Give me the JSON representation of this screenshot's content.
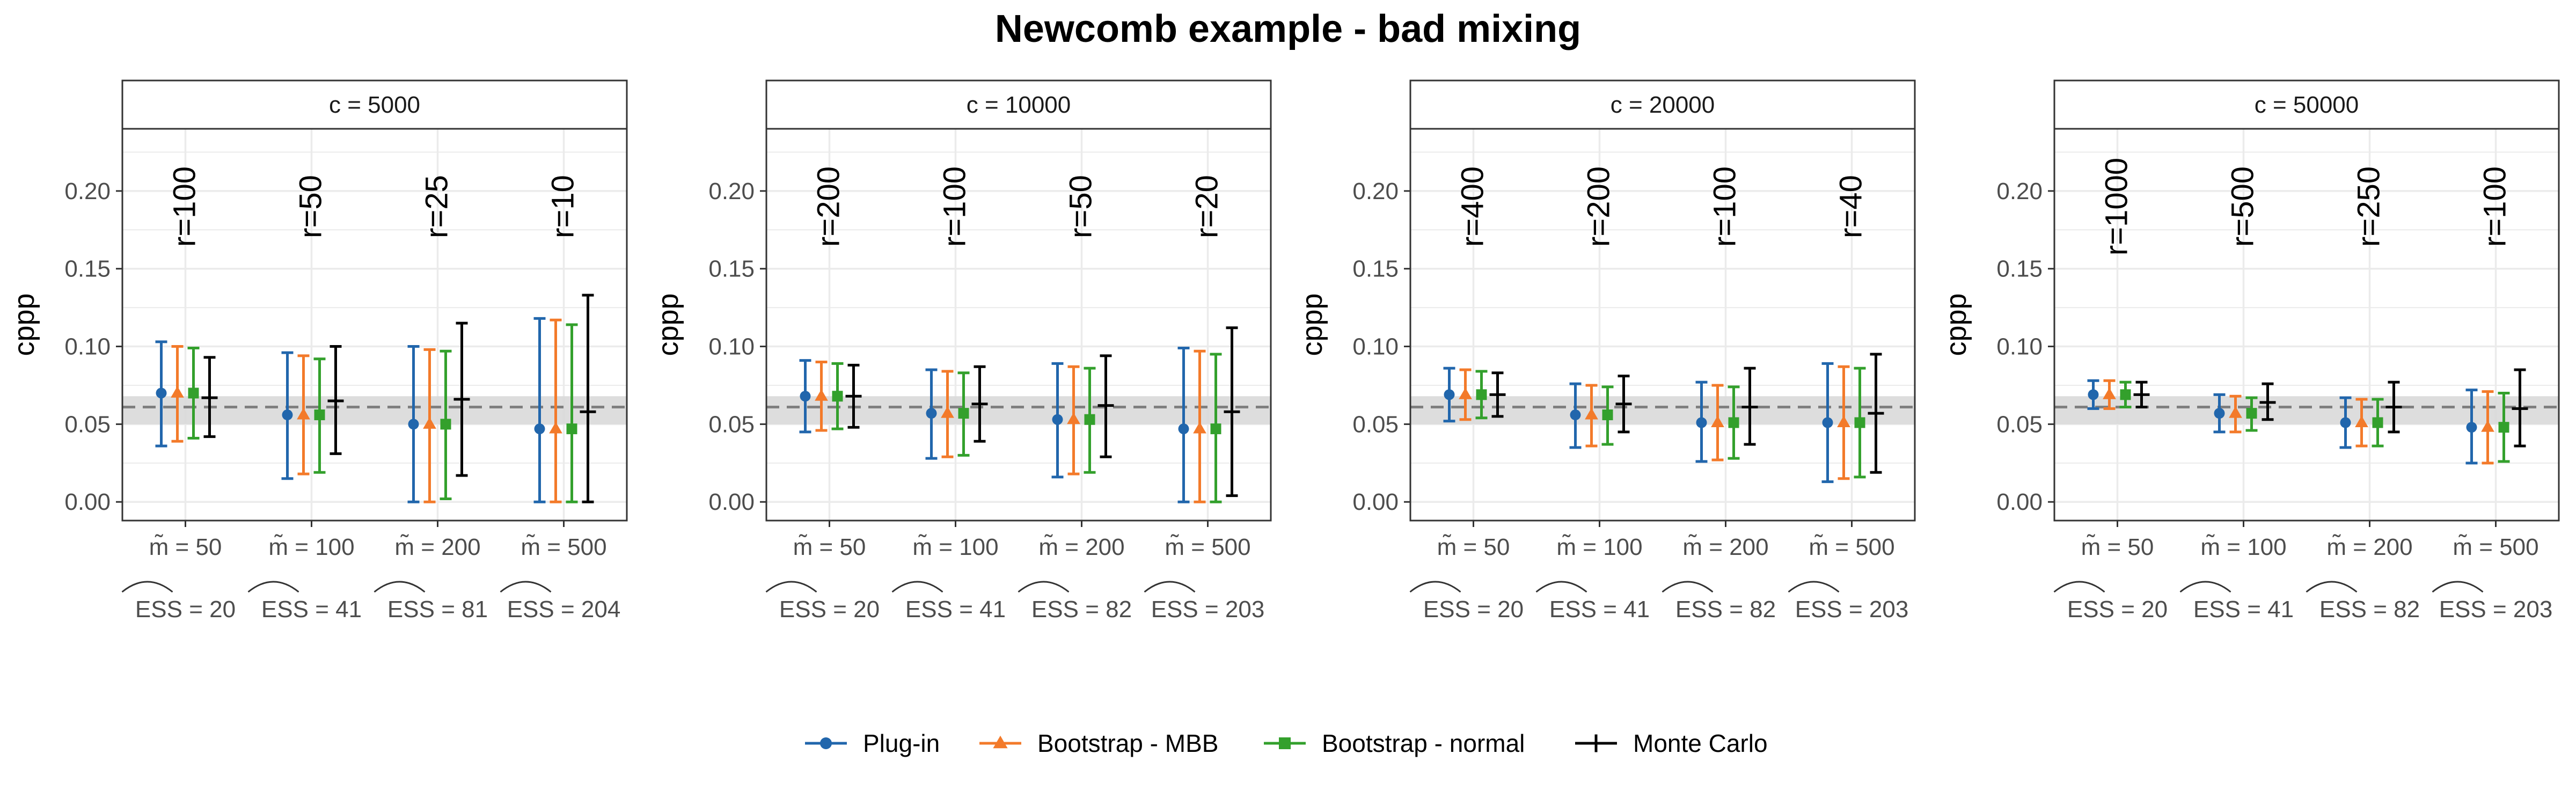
{
  "title": "Newcomb example - bad mixing",
  "colors": {
    "plugin": "#2166AC",
    "mbb": "#F37A2A",
    "normal": "#33A02C",
    "montecarlo": "#000000",
    "band": "#D9D9D9",
    "grid": "#EBEBEB",
    "dashed": "#7F7F7F"
  },
  "chart_data": {
    "type": "errorbar",
    "title": "Newcomb example - bad mixing",
    "ylabel": "cppp",
    "ylim": [
      -0.012,
      0.24
    ],
    "yticks": [
      0.0,
      0.05,
      0.1,
      0.15,
      0.2
    ],
    "ytick_labels": [
      "0.00",
      "0.05",
      "0.10",
      "0.15",
      "0.20"
    ],
    "reference_line": 0.061,
    "reference_band": [
      0.05,
      0.068
    ],
    "legend": {
      "position": "bottom",
      "entries": [
        {
          "key": "plugin",
          "label": "Plug-in",
          "marker": "circle"
        },
        {
          "key": "mbb",
          "label": "Bootstrap - MBB",
          "marker": "triangle"
        },
        {
          "key": "normal",
          "label": "Bootstrap - normal",
          "marker": "square"
        },
        {
          "key": "montecarlo",
          "label": "Monte Carlo",
          "marker": "plus"
        }
      ]
    },
    "panels": [
      {
        "strip": "c = 5000",
        "groups": [
          {
            "m_label": "m̃ = 50",
            "ess_label": "ESS = 20",
            "r_label": "r=100",
            "plugin": {
              "est": 0.07,
              "low": 0.036,
              "high": 0.103
            },
            "mbb": {
              "est": 0.07,
              "low": 0.039,
              "high": 0.1
            },
            "normal": {
              "est": 0.07,
              "low": 0.041,
              "high": 0.099
            },
            "montecarlo": {
              "est": 0.067,
              "low": 0.042,
              "high": 0.093
            }
          },
          {
            "m_label": "m̃ = 100",
            "ess_label": "ESS = 41",
            "r_label": "r=50",
            "plugin": {
              "est": 0.056,
              "low": 0.015,
              "high": 0.096
            },
            "mbb": {
              "est": 0.056,
              "low": 0.018,
              "high": 0.094
            },
            "normal": {
              "est": 0.056,
              "low": 0.019,
              "high": 0.092
            },
            "montecarlo": {
              "est": 0.065,
              "low": 0.031,
              "high": 0.1
            }
          },
          {
            "m_label": "m̃ = 200",
            "ess_label": "ESS = 81",
            "r_label": "r=25",
            "plugin": {
              "est": 0.05,
              "low": 0.0,
              "high": 0.1
            },
            "mbb": {
              "est": 0.05,
              "low": 0.0,
              "high": 0.098
            },
            "normal": {
              "est": 0.05,
              "low": 0.002,
              "high": 0.097
            },
            "montecarlo": {
              "est": 0.066,
              "low": 0.017,
              "high": 0.115
            }
          },
          {
            "m_label": "m̃ = 500",
            "ess_label": "ESS = 204",
            "r_label": "r=10",
            "plugin": {
              "est": 0.047,
              "low": 0.0,
              "high": 0.118
            },
            "mbb": {
              "est": 0.047,
              "low": 0.0,
              "high": 0.117
            },
            "normal": {
              "est": 0.047,
              "low": 0.0,
              "high": 0.114
            },
            "montecarlo": {
              "est": 0.058,
              "low": 0.0,
              "high": 0.133
            }
          }
        ]
      },
      {
        "strip": "c = 10000",
        "groups": [
          {
            "m_label": "m̃ = 50",
            "ess_label": "ESS = 20",
            "r_label": "r=200",
            "plugin": {
              "est": 0.068,
              "low": 0.045,
              "high": 0.091
            },
            "mbb": {
              "est": 0.068,
              "low": 0.046,
              "high": 0.09
            },
            "normal": {
              "est": 0.068,
              "low": 0.047,
              "high": 0.089
            },
            "montecarlo": {
              "est": 0.068,
              "low": 0.048,
              "high": 0.088
            }
          },
          {
            "m_label": "m̃ = 100",
            "ess_label": "ESS = 41",
            "r_label": "r=100",
            "plugin": {
              "est": 0.057,
              "low": 0.028,
              "high": 0.085
            },
            "mbb": {
              "est": 0.057,
              "low": 0.029,
              "high": 0.084
            },
            "normal": {
              "est": 0.057,
              "low": 0.03,
              "high": 0.083
            },
            "montecarlo": {
              "est": 0.063,
              "low": 0.039,
              "high": 0.087
            }
          },
          {
            "m_label": "m̃ = 200",
            "ess_label": "ESS = 82",
            "r_label": "r=50",
            "plugin": {
              "est": 0.053,
              "low": 0.016,
              "high": 0.089
            },
            "mbb": {
              "est": 0.053,
              "low": 0.018,
              "high": 0.087
            },
            "normal": {
              "est": 0.053,
              "low": 0.019,
              "high": 0.086
            },
            "montecarlo": {
              "est": 0.062,
              "low": 0.029,
              "high": 0.094
            }
          },
          {
            "m_label": "m̃ = 500",
            "ess_label": "ESS = 203",
            "r_label": "r=20",
            "plugin": {
              "est": 0.047,
              "low": 0.0,
              "high": 0.099
            },
            "mbb": {
              "est": 0.047,
              "low": 0.0,
              "high": 0.097
            },
            "normal": {
              "est": 0.047,
              "low": 0.0,
              "high": 0.095
            },
            "montecarlo": {
              "est": 0.058,
              "low": 0.004,
              "high": 0.112
            }
          }
        ]
      },
      {
        "strip": "c = 20000",
        "groups": [
          {
            "m_label": "m̃ = 50",
            "ess_label": "ESS = 20",
            "r_label": "r=400",
            "plugin": {
              "est": 0.069,
              "low": 0.052,
              "high": 0.086
            },
            "mbb": {
              "est": 0.069,
              "low": 0.053,
              "high": 0.085
            },
            "normal": {
              "est": 0.069,
              "low": 0.054,
              "high": 0.084
            },
            "montecarlo": {
              "est": 0.069,
              "low": 0.055,
              "high": 0.083
            }
          },
          {
            "m_label": "m̃ = 100",
            "ess_label": "ESS = 41",
            "r_label": "r=200",
            "plugin": {
              "est": 0.056,
              "low": 0.035,
              "high": 0.076
            },
            "mbb": {
              "est": 0.056,
              "low": 0.036,
              "high": 0.075
            },
            "normal": {
              "est": 0.056,
              "low": 0.037,
              "high": 0.074
            },
            "montecarlo": {
              "est": 0.063,
              "low": 0.045,
              "high": 0.081
            }
          },
          {
            "m_label": "m̃ = 200",
            "ess_label": "ESS = 82",
            "r_label": "r=100",
            "plugin": {
              "est": 0.051,
              "low": 0.026,
              "high": 0.077
            },
            "mbb": {
              "est": 0.051,
              "low": 0.027,
              "high": 0.075
            },
            "normal": {
              "est": 0.051,
              "low": 0.028,
              "high": 0.074
            },
            "montecarlo": {
              "est": 0.061,
              "low": 0.037,
              "high": 0.086
            }
          },
          {
            "m_label": "m̃ = 500",
            "ess_label": "ESS = 203",
            "r_label": "r=40",
            "plugin": {
              "est": 0.051,
              "low": 0.013,
              "high": 0.089
            },
            "mbb": {
              "est": 0.051,
              "low": 0.015,
              "high": 0.087
            },
            "normal": {
              "est": 0.051,
              "low": 0.016,
              "high": 0.086
            },
            "montecarlo": {
              "est": 0.057,
              "low": 0.019,
              "high": 0.095
            }
          }
        ]
      },
      {
        "strip": "c = 50000",
        "groups": [
          {
            "m_label": "m̃ = 50",
            "ess_label": "ESS = 20",
            "r_label": "r=1000",
            "plugin": {
              "est": 0.069,
              "low": 0.06,
              "high": 0.078
            },
            "mbb": {
              "est": 0.069,
              "low": 0.06,
              "high": 0.078
            },
            "normal": {
              "est": 0.069,
              "low": 0.061,
              "high": 0.077
            },
            "montecarlo": {
              "est": 0.069,
              "low": 0.061,
              "high": 0.077
            }
          },
          {
            "m_label": "m̃ = 100",
            "ess_label": "ESS = 41",
            "r_label": "r=500",
            "plugin": {
              "est": 0.057,
              "low": 0.045,
              "high": 0.069
            },
            "mbb": {
              "est": 0.057,
              "low": 0.045,
              "high": 0.068
            },
            "normal": {
              "est": 0.057,
              "low": 0.046,
              "high": 0.067
            },
            "montecarlo": {
              "est": 0.064,
              "low": 0.053,
              "high": 0.076
            }
          },
          {
            "m_label": "m̃ = 200",
            "ess_label": "ESS = 82",
            "r_label": "r=250",
            "plugin": {
              "est": 0.051,
              "low": 0.035,
              "high": 0.067
            },
            "mbb": {
              "est": 0.051,
              "low": 0.036,
              "high": 0.066
            },
            "normal": {
              "est": 0.051,
              "low": 0.036,
              "high": 0.066
            },
            "montecarlo": {
              "est": 0.061,
              "low": 0.045,
              "high": 0.077
            }
          },
          {
            "m_label": "m̃ = 500",
            "ess_label": "ESS = 203",
            "r_label": "r=100",
            "plugin": {
              "est": 0.048,
              "low": 0.025,
              "high": 0.072
            },
            "mbb": {
              "est": 0.048,
              "low": 0.025,
              "high": 0.071
            },
            "normal": {
              "est": 0.048,
              "low": 0.026,
              "high": 0.07
            },
            "montecarlo": {
              "est": 0.06,
              "low": 0.036,
              "high": 0.085
            }
          }
        ]
      }
    ]
  }
}
